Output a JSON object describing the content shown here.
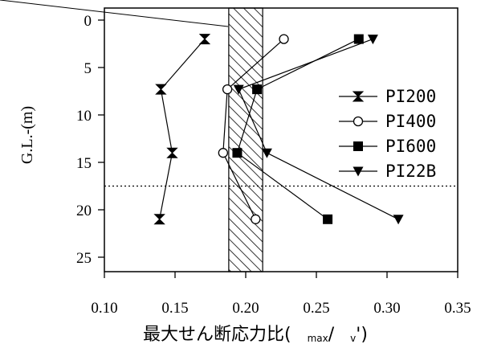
{
  "chart_data": {
    "type": "line",
    "orientation": "depth-profile",
    "xlabel_main": "最大せん断応力比(",
    "xlabel_sub1": "max",
    "xlabel_slash": "/",
    "xlabel_sub2": "v",
    "xlabel_end": "')",
    "ylabel": "G.L.-(m)",
    "xlim": [
      0.1,
      0.35
    ],
    "ylim": [
      0,
      25
    ],
    "y_inverted": true,
    "x_ticks": [
      "0.10",
      "0.15",
      "0.20",
      "0.25",
      "0.30",
      "0.35"
    ],
    "y_ticks": [
      "0",
      "5",
      "10",
      "15",
      "20",
      "25"
    ],
    "legend_position": "right",
    "hatched_band_x": [
      0.188,
      0.212
    ],
    "reference_line_depth": 17.5,
    "series": [
      {
        "name": "PI200",
        "marker": "hourglass",
        "points": [
          [
            0.171,
            2.0
          ],
          [
            0.14,
            7.3
          ],
          [
            0.148,
            14.0
          ],
          [
            0.139,
            21.0
          ]
        ]
      },
      {
        "name": "PI400",
        "marker": "open-circle",
        "points": [
          [
            0.227,
            2.0
          ],
          [
            0.187,
            7.3
          ],
          [
            0.184,
            14.0
          ],
          [
            0.207,
            21.0
          ]
        ]
      },
      {
        "name": "PI600",
        "marker": "filled-square",
        "points": [
          [
            0.28,
            2.0
          ],
          [
            0.208,
            7.3
          ],
          [
            0.194,
            14.0
          ],
          [
            0.258,
            21.0
          ]
        ]
      },
      {
        "name": "PI22B",
        "marker": "down-triangle",
        "points": [
          [
            0.29,
            2.0
          ],
          [
            0.195,
            7.3
          ],
          [
            0.215,
            14.0
          ],
          [
            0.308,
            21.0
          ]
        ]
      }
    ]
  }
}
